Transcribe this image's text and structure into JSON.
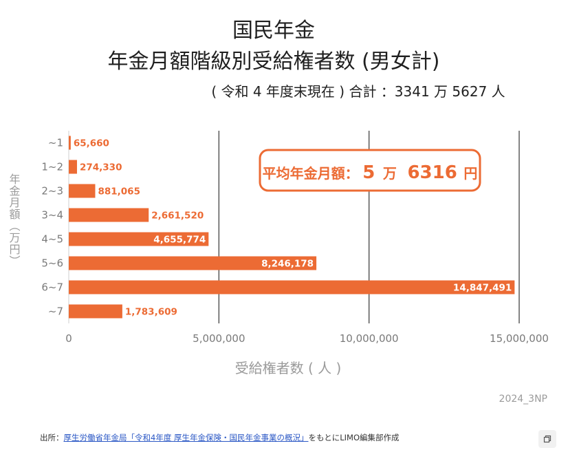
{
  "titles": {
    "line1": "国民年金",
    "line2": "年金月額階級別受給権者数 (男女計)",
    "subtitle": "( 令和 4 年度末現在 ) 合計 ：3341 万 5627 人"
  },
  "callout": {
    "label": "平均年金月額：",
    "num1": "5",
    "unit1": "万",
    "num2": "6316",
    "unit2": "円"
  },
  "credit": "2024_3NP",
  "source": {
    "prefix": "出所：",
    "link": "厚生労働省年金局「令和4年度 厚生年金保険・国民年金事業の概況」",
    "suffix": "をもとにLIMO編集部作成"
  },
  "colors": {
    "bar": "#ec6b34",
    "callout_border": "#ec6b34",
    "label_dark": "#ec6b34",
    "label_light": "#ffffff"
  },
  "chart_data": {
    "type": "bar",
    "orientation": "horizontal",
    "categories": [
      "~1",
      "1~2",
      "2~3",
      "3~4",
      "4~5",
      "5~6",
      "6~7",
      "~7"
    ],
    "values": [
      65660,
      274330,
      881065,
      2661520,
      4655774,
      8246178,
      14847491,
      1783609
    ],
    "value_labels": [
      "65,660",
      "274,330",
      "881,065",
      "2,661,520",
      "4,655,774",
      "8,246,178",
      "14,847,491",
      "1,783,609"
    ],
    "xlabel": "受給権者数 ( 人 )",
    "ylabel": "年金月額（万円）",
    "xlim": [
      0,
      15000000
    ],
    "xticks": [
      0,
      5000000,
      10000000,
      15000000
    ],
    "xtick_labels": [
      "0",
      "5,000,000",
      "10,000,000",
      "15,000,000"
    ],
    "grid": true
  }
}
